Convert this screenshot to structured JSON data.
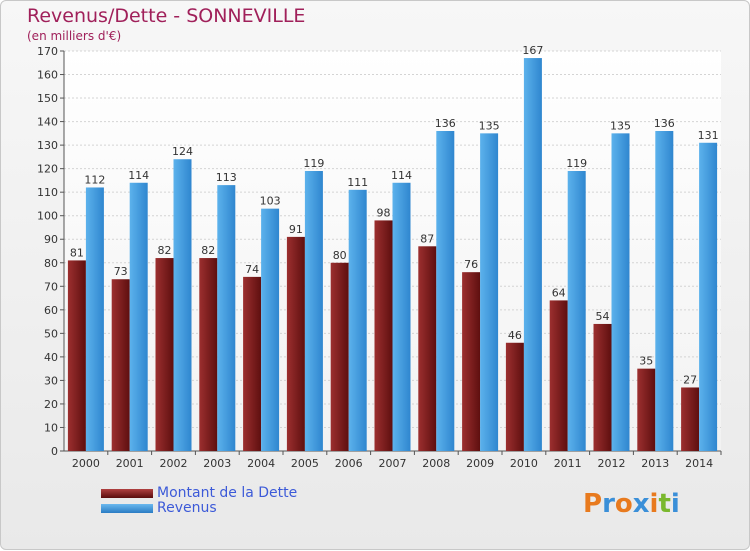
{
  "chart_data": {
    "type": "bar",
    "title": "Revenus/Dette - SONNEVILLE",
    "subtitle": "(en milliers d'€)",
    "categories": [
      "2000",
      "2001",
      "2002",
      "2003",
      "2004",
      "2005",
      "2006",
      "2007",
      "2008",
      "2009",
      "2010",
      "2011",
      "2012",
      "2013",
      "2014"
    ],
    "series": [
      {
        "name": "Montant de la Dette",
        "color": "#7a1a1a",
        "values": [
          81,
          73,
          82,
          82,
          74,
          91,
          80,
          98,
          87,
          76,
          46,
          64,
          54,
          35,
          27
        ]
      },
      {
        "name": "Revenus",
        "color": "#3a9be0",
        "values": [
          112,
          114,
          124,
          113,
          103,
          119,
          111,
          114,
          136,
          135,
          167,
          119,
          135,
          136,
          131
        ]
      }
    ],
    "ylim": [
      0,
      170
    ],
    "yticks": [
      0,
      10,
      20,
      30,
      40,
      50,
      60,
      70,
      80,
      90,
      100,
      110,
      120,
      130,
      140,
      150,
      160,
      170
    ],
    "grid": true,
    "legend_position": "bottom-left"
  },
  "legend": {
    "debt_label": "Montant de la Dette",
    "revenue_label": "Revenus"
  },
  "logo": {
    "letters": [
      "P",
      "r",
      "o",
      "x",
      "i",
      "t",
      "i"
    ],
    "colors": [
      "#e87a1e",
      "#3a8fd8",
      "#e87a1e",
      "#3a8fd8",
      "#e87a1e",
      "#7ab82e",
      "#3a8fd8"
    ]
  }
}
